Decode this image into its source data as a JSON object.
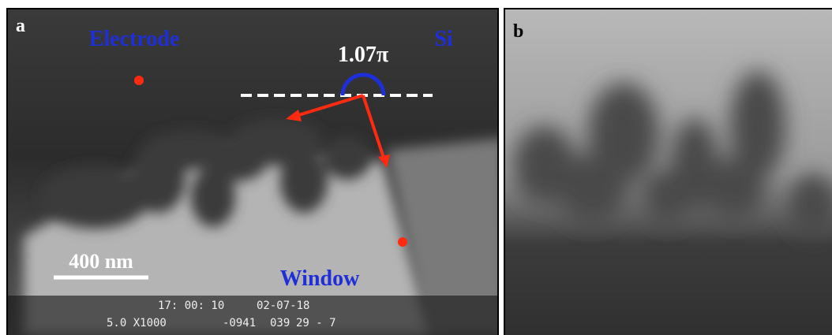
{
  "panels": {
    "a": {
      "label": "a",
      "electrode": "Electrode",
      "si": "Si",
      "angle": "1.07π",
      "scale_bar": "400 nm",
      "window": "Window",
      "overlay": {
        "time": "17: 00: 10",
        "date": "02-07-18",
        "setting": "5.0 X1000",
        "code1": "-0941",
        "code2": "039",
        "frame": "29 - 7"
      }
    },
    "b": {
      "label": "b"
    }
  }
}
